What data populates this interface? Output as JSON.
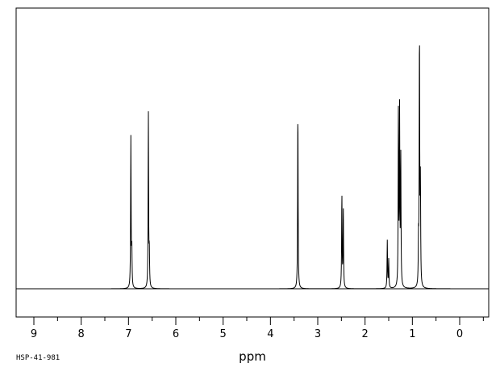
{
  "chart_data": {
    "type": "line",
    "title": "",
    "xlabel": "ppm",
    "ylabel": "",
    "x_reversed": true,
    "xlim": [
      9.5,
      -0.6
    ],
    "ylim": [
      0,
      1.0
    ],
    "xticks": [
      9,
      8,
      7,
      6,
      5,
      4,
      3,
      2,
      1,
      0
    ],
    "grid": false,
    "sample_id": "HSP-41-981",
    "peaks": [
      {
        "shift": 6.95,
        "height": 0.585
      },
      {
        "shift": 6.93,
        "height": 0.145
      },
      {
        "shift": 6.58,
        "height": 0.68
      },
      {
        "shift": 6.56,
        "height": 0.135
      },
      {
        "shift": 3.42,
        "height": 0.7
      },
      {
        "shift": 2.49,
        "height": 0.365
      },
      {
        "shift": 2.46,
        "height": 0.31
      },
      {
        "shift": 1.53,
        "height": 0.185
      },
      {
        "shift": 1.5,
        "height": 0.11
      },
      {
        "shift": 1.295,
        "height": 0.67
      },
      {
        "shift": 1.27,
        "height": 0.67
      },
      {
        "shift": 1.245,
        "height": 0.5
      },
      {
        "shift": 0.87,
        "height": 0.16
      },
      {
        "shift": 0.85,
        "height": 0.99
      },
      {
        "shift": 0.83,
        "height": 0.39
      }
    ]
  }
}
